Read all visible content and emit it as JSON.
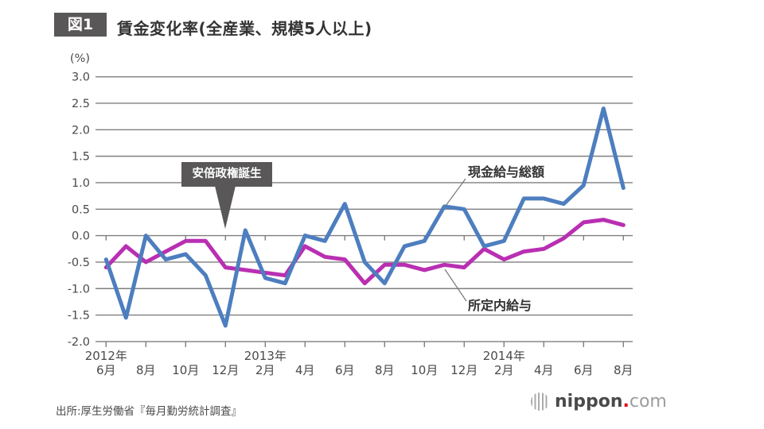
{
  "figure_badge": "図1",
  "title": "賃金変化率(全産業、規模5人以上)",
  "source": "出所:厚生労働省『毎月勤労統計調査』",
  "logo": {
    "name": "nippon",
    "dot": ".",
    "tld": "com"
  },
  "colors": {
    "badge_bg": "#595757",
    "annotation_bg": "#595757",
    "grid": "#7f7f7f",
    "axis_text": "#4a4a4a",
    "leader_line": "#777777",
    "logo_dot": "#e60012"
  },
  "chart_data": {
    "type": "line",
    "y_unit": "(%)",
    "ylim": [
      -2.0,
      3.0
    ],
    "grid": true,
    "y_ticks": [
      "3.0",
      "2.5",
      "2.0",
      "1.5",
      "1.0",
      "0.5",
      "0.0",
      "-0.5",
      "-1.0",
      "-1.5",
      "-2.0"
    ],
    "categories": [
      "2012年6月",
      "2012年7月",
      "2012年8月",
      "2012年9月",
      "2012年10月",
      "2012年11月",
      "2012年12月",
      "2013年1月",
      "2013年2月",
      "2013年3月",
      "2013年4月",
      "2013年5月",
      "2013年6月",
      "2013年7月",
      "2013年8月",
      "2013年9月",
      "2013年10月",
      "2013年11月",
      "2013年12月",
      "2014年1月",
      "2014年2月",
      "2014年3月",
      "2014年4月",
      "2014年5月",
      "2014年6月",
      "2014年7月",
      "2014年8月"
    ],
    "x_tick_labels": [
      {
        "index": 0,
        "label": "6月",
        "year": "2012年"
      },
      {
        "index": 2,
        "label": "8月"
      },
      {
        "index": 4,
        "label": "10月"
      },
      {
        "index": 6,
        "label": "12月"
      },
      {
        "index": 8,
        "label": "2月",
        "year": "2013年"
      },
      {
        "index": 10,
        "label": "4月"
      },
      {
        "index": 12,
        "label": "6月"
      },
      {
        "index": 14,
        "label": "8月"
      },
      {
        "index": 16,
        "label": "10月"
      },
      {
        "index": 18,
        "label": "12月"
      },
      {
        "index": 20,
        "label": "2月",
        "year": "2014年"
      },
      {
        "index": 22,
        "label": "4月"
      },
      {
        "index": 24,
        "label": "6月"
      },
      {
        "index": 26,
        "label": "8月"
      }
    ],
    "series": [
      {
        "name": "現金給与総額",
        "color": "#4d7ebf",
        "values": [
          -0.45,
          -1.55,
          0.0,
          -0.45,
          -0.35,
          -0.75,
          -1.7,
          0.1,
          -0.8,
          -0.9,
          0.0,
          -0.1,
          0.6,
          -0.5,
          -0.9,
          -0.2,
          -0.1,
          0.55,
          0.5,
          -0.2,
          -0.1,
          0.7,
          0.7,
          0.6,
          0.95,
          2.4,
          0.9
        ]
      },
      {
        "name": "所定内給与",
        "color": "#b92fb2",
        "values": [
          -0.6,
          -0.2,
          -0.5,
          -0.3,
          -0.1,
          -0.1,
          -0.6,
          -0.65,
          -0.7,
          -0.75,
          -0.2,
          -0.4,
          -0.45,
          -0.9,
          -0.55,
          -0.55,
          -0.65,
          -0.55,
          -0.6,
          -0.25,
          -0.45,
          -0.3,
          -0.25,
          -0.05,
          0.25,
          0.3,
          0.2
        ]
      }
    ],
    "annotation": {
      "text": "安倍政権誕生",
      "points_to": "2012年12月"
    },
    "legend_position": "inline-labels"
  }
}
